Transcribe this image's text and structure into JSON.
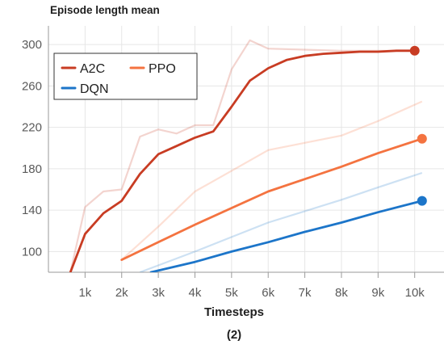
{
  "chart_data": {
    "type": "line",
    "title": "Episode length mean",
    "xlabel": "Timesteps",
    "caption": "(2)",
    "xlim": [
      0,
      10800
    ],
    "ylim": [
      80,
      318
    ],
    "x_ticks": [
      1000,
      2000,
      3000,
      4000,
      5000,
      6000,
      7000,
      8000,
      9000,
      10000
    ],
    "x_tick_labels": [
      "1k",
      "2k",
      "3k",
      "4k",
      "5k",
      "6k",
      "7k",
      "8k",
      "9k",
      "10k"
    ],
    "y_ticks": [
      100,
      140,
      180,
      220,
      260,
      300
    ],
    "y_tick_labels": [
      "100",
      "140",
      "180",
      "220",
      "260",
      "300"
    ],
    "grid": true,
    "legend_position": "top-left",
    "series": [
      {
        "name": "A2C",
        "color": "#c83c23",
        "x": [
          600,
          1000,
          1500,
          2000,
          2500,
          3000,
          3500,
          4000,
          4500,
          5000,
          5500,
          6000,
          6500,
          7000,
          7500,
          8000,
          8500,
          9000,
          9500,
          10000
        ],
        "values": [
          80,
          117,
          137,
          149,
          175,
          194,
          202,
          210,
          216,
          240,
          265,
          277,
          285,
          289,
          291,
          292,
          293,
          293,
          294,
          294
        ],
        "raw_x": [
          600,
          1000,
          1500,
          2000,
          2500,
          3000,
          3500,
          4000,
          4500,
          5000,
          5500,
          6000,
          7000,
          8000,
          9000,
          10000
        ],
        "raw_values": [
          80,
          143,
          158,
          160,
          211,
          218,
          214,
          222,
          222,
          276,
          304,
          296,
          295,
          294,
          294,
          294
        ]
      },
      {
        "name": "PPO",
        "color": "#f47340",
        "x": [
          2000,
          3000,
          4000,
          5000,
          6000,
          7000,
          8000,
          9000,
          10200
        ],
        "values": [
          92,
          109,
          126,
          142,
          158,
          170,
          182,
          195,
          209
        ],
        "raw_x": [
          2000,
          3000,
          4000,
          5000,
          6000,
          7000,
          8000,
          9000,
          10200
        ],
        "raw_values": [
          92,
          124,
          158,
          178,
          198,
          205,
          212,
          226,
          245
        ]
      },
      {
        "name": "DQN",
        "color": "#1c75c9",
        "x": [
          2800,
          4000,
          5000,
          6000,
          7000,
          8000,
          9000,
          10200
        ],
        "values": [
          80,
          90,
          100,
          109,
          119,
          128,
          138,
          149
        ],
        "raw_x": [
          2500,
          4000,
          5000,
          6000,
          7000,
          8000,
          9000,
          10200
        ],
        "raw_values": [
          80,
          100,
          114,
          128,
          139,
          150,
          162,
          176
        ]
      }
    ]
  }
}
